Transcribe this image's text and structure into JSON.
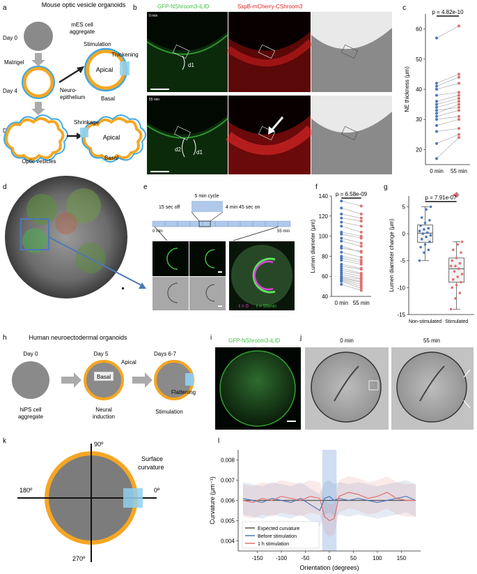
{
  "panels": {
    "a": {
      "letter": "a",
      "title": "Mouse optic vesicle organoids",
      "day0": "Day 0",
      "day4": "Day 4",
      "day6": "Day 6",
      "mes_l1": "mES cell",
      "mes_l2": "aggregate",
      "matrigel": "Matrigel",
      "neuro_l1": "Neuro-",
      "neuro_l2": "epithelium",
      "stimulation": "Stimulation",
      "thickening": "Thickening",
      "apical": "Apical",
      "basal": "Basal",
      "shrinkage": "Shrinkage",
      "apical2": "Apical",
      "basal2": "Basal",
      "optic_vesicles": "Optic vesicles"
    },
    "b": {
      "letter": "b",
      "ch1": "GFP-NShroom3-iLID",
      "ch2": "SspB-mCherry-CShroom3",
      "t_top": "0 min",
      "t_bot": "55 min",
      "d1": "d1",
      "d2": "d2",
      "d1b": "d1"
    },
    "c": {
      "letter": "c"
    },
    "d": {
      "letter": "d"
    },
    "e": {
      "letter": "e",
      "cycle": "5 min cycle",
      "off": "15 sec off",
      "on": "4 min 45 sec on",
      "start": "0 min",
      "end": "55 min",
      "t0": "t = 0",
      "t55": "t = 55min"
    },
    "f": {
      "letter": "f"
    },
    "g": {
      "letter": "g"
    },
    "h": {
      "letter": "h",
      "title": "Human neuroectodermal organoids",
      "day0": "Day 0",
      "day5": "Day 5",
      "day67": "Days 6-7",
      "basal": "Basal",
      "apical": "Apical",
      "flattening": "Flattening",
      "hips_l1": "hiPS cell",
      "hips_l2": "aggregate",
      "neural_l1": "Neural",
      "neural_l2": "induction",
      "stimulation": "Stimulation"
    },
    "i": {
      "letter": "i",
      "label": "GFP-NShroom3-iLID"
    },
    "j": {
      "letter": "j",
      "t0": "0 min",
      "t55": "55 min"
    },
    "k": {
      "letter": "k",
      "a90": "90º",
      "a180": "180º",
      "a0": "0º",
      "a270": "270º",
      "surf_l1": "Surface",
      "surf_l2": "curvature"
    },
    "l": {
      "letter": "l"
    }
  },
  "colors": {
    "blue_series": "#4c78b8",
    "red_series": "#e07070",
    "organoid_orange": "#f5a623",
    "organoid_blue": "#3fa9e0",
    "fluor_green": "#3fbf3f",
    "fluor_red": "#e02020"
  },
  "chart_data": [
    {
      "id": "c",
      "type": "scatter",
      "categories": [
        "0 min",
        "55 min"
      ],
      "ylabel": "NE thickness (μm)",
      "ylim": [
        15,
        65
      ],
      "yticks": [
        20,
        30,
        40,
        50,
        60
      ],
      "annotation": "p = 4.82e-10",
      "pairs": [
        [
          17,
          24
        ],
        [
          22,
          25
        ],
        [
          26,
          27
        ],
        [
          28,
          30
        ],
        [
          30,
          31
        ],
        [
          31,
          33
        ],
        [
          32,
          35
        ],
        [
          33,
          34
        ],
        [
          34,
          36
        ],
        [
          35,
          37
        ],
        [
          36,
          38
        ],
        [
          38,
          39
        ],
        [
          40,
          42
        ],
        [
          41,
          44
        ],
        [
          42,
          45
        ],
        [
          57,
          61
        ]
      ]
    },
    {
      "id": "f",
      "type": "scatter",
      "categories": [
        "0 min",
        "55 min"
      ],
      "ylabel": "Lumen diameter (μm)",
      "ylim": [
        40,
        140
      ],
      "yticks": [
        40,
        60,
        80,
        100,
        120,
        140
      ],
      "annotation": "p = 6.58e-09",
      "pairs": [
        [
          135,
          130
        ],
        [
          128,
          122
        ],
        [
          122,
          118
        ],
        [
          118,
          115
        ],
        [
          114,
          110
        ],
        [
          110,
          104
        ],
        [
          104,
          100
        ],
        [
          102,
          98
        ],
        [
          98,
          93
        ],
        [
          95,
          90
        ],
        [
          90,
          84
        ],
        [
          88,
          85
        ],
        [
          84,
          79
        ],
        [
          80,
          76
        ],
        [
          78,
          74
        ],
        [
          76,
          72
        ],
        [
          72,
          68
        ],
        [
          70,
          67
        ],
        [
          68,
          63
        ],
        [
          66,
          62
        ],
        [
          64,
          60
        ],
        [
          62,
          58
        ],
        [
          60,
          57
        ],
        [
          59,
          55
        ],
        [
          58,
          54
        ],
        [
          57,
          52
        ],
        [
          56,
          50
        ],
        [
          55,
          48
        ],
        [
          52,
          46
        ]
      ]
    },
    {
      "id": "g",
      "type": "box",
      "categories": [
        "Non-stimulated",
        "Stimulated"
      ],
      "ylabel": "Lumen diameter change (μm)",
      "ylim": [
        -15,
        7
      ],
      "yticks": [
        -15,
        -10,
        -5,
        0,
        5
      ],
      "annotation": "p = 7.91e-07",
      "series": [
        {
          "name": "Non-stimulated",
          "values": [
            5,
            4.5,
            3,
            2.5,
            2,
            1.5,
            1,
            0.8,
            0.5,
            0.2,
            0,
            -0.3,
            -0.6,
            -1,
            -1.5,
            -2,
            -2.5,
            -3,
            -3.5,
            -5
          ]
        },
        {
          "name": "Stimulated",
          "values": [
            7.2,
            -1.5,
            -2,
            -3,
            -3.5,
            -4.5,
            -5,
            -5.5,
            -6,
            -6,
            -6.5,
            -7,
            -7.5,
            -8,
            -8.5,
            -9,
            -9.5,
            -10,
            -11,
            -12,
            -14
          ]
        }
      ]
    },
    {
      "id": "l",
      "type": "line",
      "xlabel": "Orientation (degrees)",
      "ylabel": "Curvature (μm⁻¹)",
      "xlim": [
        -190,
        190
      ],
      "ylim": [
        0.0035,
        0.0085
      ],
      "xticks": [
        -150,
        -100,
        -50,
        0,
        50,
        100,
        150
      ],
      "yticks": [
        0.004,
        0.005,
        0.006,
        0.007,
        0.008
      ],
      "highlight": [
        -15,
        15
      ],
      "legend_loc": "lower-left",
      "series": [
        {
          "name": "Expected curvature",
          "color": "#555555",
          "x": [
            -180,
            180
          ],
          "y": [
            0.006,
            0.006
          ]
        },
        {
          "name": "Before stimulation",
          "color": "#4c78b8",
          "x": [
            -180,
            -160,
            -140,
            -120,
            -100,
            -80,
            -60,
            -40,
            -20,
            -10,
            0,
            10,
            20,
            40,
            60,
            80,
            100,
            120,
            140,
            160,
            180
          ],
          "y": [
            0.0061,
            0.006,
            0.0059,
            0.0061,
            0.006,
            0.0059,
            0.0061,
            0.0058,
            0.0055,
            0.0061,
            0.0062,
            0.006,
            0.0061,
            0.006,
            0.0061,
            0.006,
            0.0059,
            0.006,
            0.0061,
            0.0062,
            0.006
          ]
        },
        {
          "name": "1 h stimulation",
          "color": "#e07070",
          "x": [
            -180,
            -160,
            -140,
            -120,
            -100,
            -80,
            -60,
            -40,
            -20,
            -10,
            0,
            10,
            20,
            40,
            60,
            80,
            100,
            120,
            140,
            160,
            180
          ],
          "y": [
            0.006,
            0.0059,
            0.0061,
            0.006,
            0.0062,
            0.0061,
            0.006,
            0.0062,
            0.0061,
            0.0052,
            0.005,
            0.0051,
            0.0062,
            0.0064,
            0.0063,
            0.0061,
            0.0062,
            0.0064,
            0.0061,
            0.006,
            0.006
          ]
        }
      ]
    }
  ]
}
